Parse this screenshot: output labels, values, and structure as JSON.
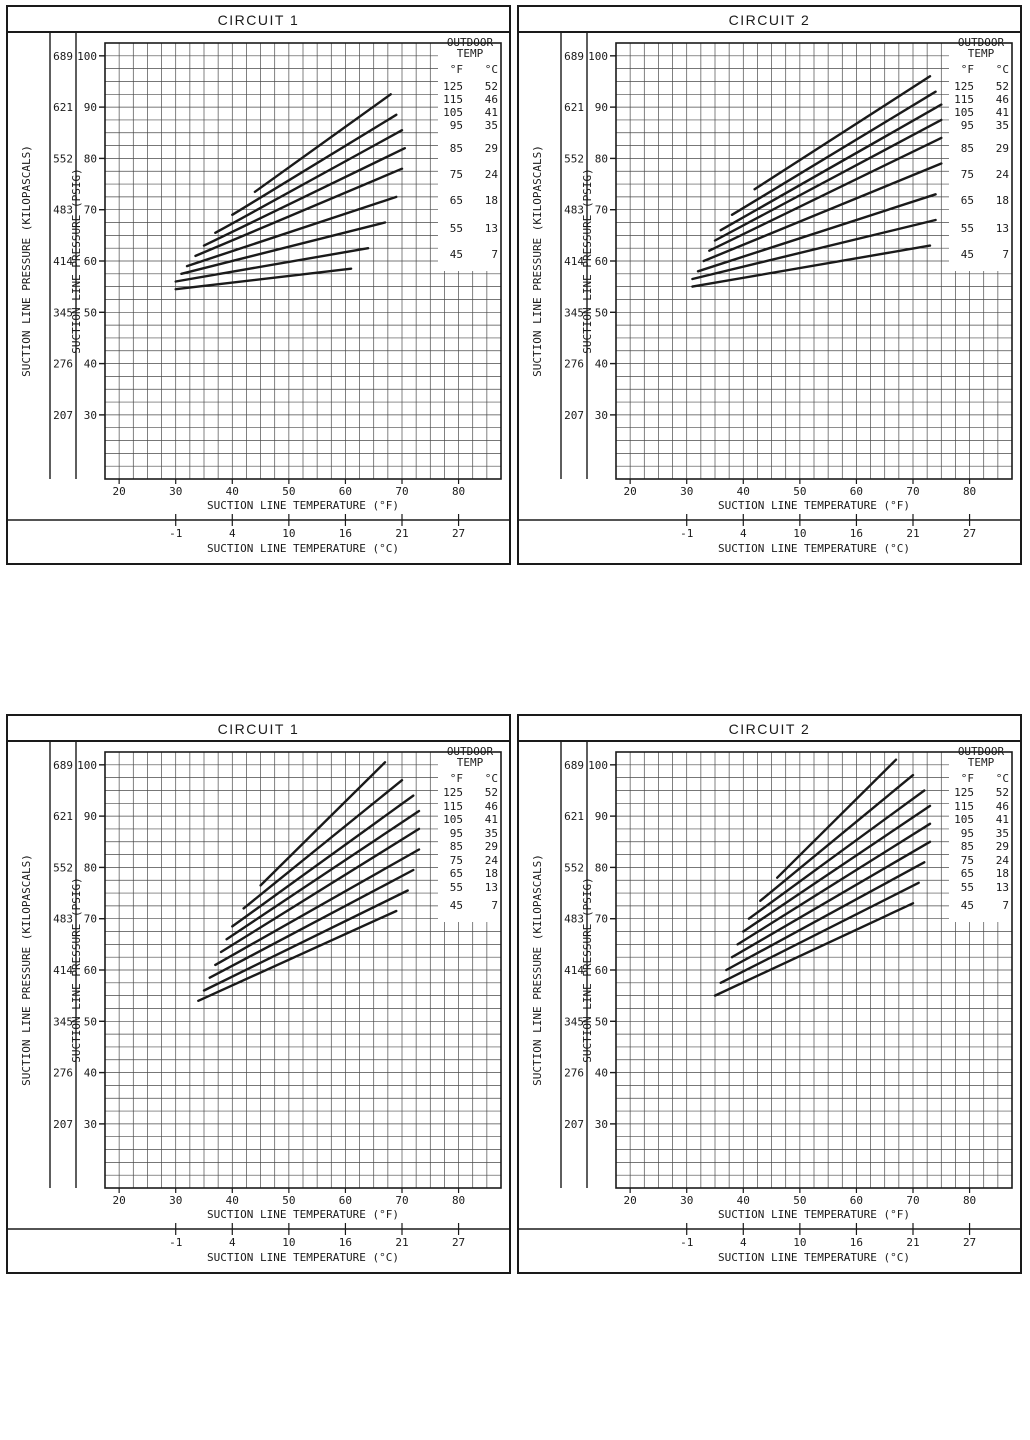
{
  "colors": {
    "ink": "#1a1a1a",
    "paper": "#ffffff",
    "grid": "#4a4a4a"
  },
  "chart_data": [
    {
      "type": "line",
      "title": "CIRCUIT 1",
      "xlabel_f": "SUCTION LINE TEMPERATURE (°F)",
      "xlabel_c": "SUCTION LINE TEMPERATURE (°C)",
      "ylabel_psig": "SUCTION LINE PRESSURE (PSIG)",
      "ylabel_kpa": "SUCTION LINE PRESSURE (KILOPASCALS)",
      "x_ticks_f": [
        20,
        30,
        40,
        50,
        60,
        70,
        80
      ],
      "x_ticks_c": [
        [
          -1,
          30
        ],
        [
          4,
          40
        ],
        [
          10,
          50
        ],
        [
          16,
          60
        ],
        [
          21,
          70
        ],
        [
          27,
          80
        ]
      ],
      "y_ticks_psig": [
        100,
        90,
        80,
        70,
        60,
        50,
        40,
        30
      ],
      "y_ticks_kpa": [
        [
          689,
          100
        ],
        [
          621,
          90
        ],
        [
          552,
          80
        ],
        [
          483,
          70
        ],
        [
          414,
          60
        ],
        [
          345,
          50
        ],
        [
          276,
          40
        ],
        [
          207,
          30
        ]
      ],
      "x_domain": [
        17.5,
        87.5
      ],
      "y_domain": [
        17.5,
        102.5
      ],
      "grid_step": 2.5,
      "grid": true,
      "legend": {
        "title": [
          "OUTDOOR",
          "TEMP"
        ],
        "columns": [
          "°F",
          "°C"
        ],
        "rows": [
          [
            125,
            52
          ],
          [
            115,
            46
          ],
          [
            105,
            41
          ],
          [
            95,
            35
          ],
          [
            85,
            29
          ],
          [
            75,
            24
          ],
          [
            65,
            18
          ],
          [
            55,
            13
          ],
          [
            45,
            7
          ]
        ],
        "layout": "spread",
        "position": "top-right"
      },
      "series": [
        {
          "outdoor_f": 45,
          "points": [
            [
              30,
              54.5
            ],
            [
              61,
              58.5
            ]
          ]
        },
        {
          "outdoor_f": 55,
          "points": [
            [
              30,
              56
            ],
            [
              64,
              62.5
            ]
          ]
        },
        {
          "outdoor_f": 65,
          "points": [
            [
              31,
              57.5
            ],
            [
              67,
              67.5
            ]
          ]
        },
        {
          "outdoor_f": 75,
          "points": [
            [
              32,
              59
            ],
            [
              69,
              72.5
            ]
          ]
        },
        {
          "outdoor_f": 85,
          "points": [
            [
              33.5,
              61
            ],
            [
              70,
              78
            ]
          ]
        },
        {
          "outdoor_f": 95,
          "points": [
            [
              35,
              63
            ],
            [
              70.5,
              82
            ]
          ]
        },
        {
          "outdoor_f": 105,
          "points": [
            [
              37,
              65.5
            ],
            [
              70,
              85.5
            ]
          ]
        },
        {
          "outdoor_f": 115,
          "points": [
            [
              40,
              69
            ],
            [
              69,
              88.5
            ]
          ]
        },
        {
          "outdoor_f": 125,
          "points": [
            [
              44,
              73.5
            ],
            [
              68,
              92.5
            ]
          ]
        }
      ]
    },
    {
      "type": "line",
      "title": "CIRCUIT 2",
      "xlabel_f": "SUCTION LINE TEMPERATURE (°F)",
      "xlabel_c": "SUCTION LINE TEMPERATURE (°C)",
      "ylabel_psig": "SUCTION LINE PRESSURE (PSIG)",
      "ylabel_kpa": "SUCTION LINE PRESSURE (KILOPASCALS)",
      "x_ticks_f": [
        20,
        30,
        40,
        50,
        60,
        70,
        80
      ],
      "x_ticks_c": [
        [
          -1,
          30
        ],
        [
          4,
          40
        ],
        [
          10,
          50
        ],
        [
          16,
          60
        ],
        [
          21,
          70
        ],
        [
          27,
          80
        ]
      ],
      "y_ticks_psig": [
        100,
        90,
        80,
        70,
        60,
        50,
        40,
        30
      ],
      "y_ticks_kpa": [
        [
          689,
          100
        ],
        [
          621,
          90
        ],
        [
          552,
          80
        ],
        [
          483,
          70
        ],
        [
          414,
          60
        ],
        [
          345,
          50
        ],
        [
          276,
          40
        ],
        [
          207,
          30
        ]
      ],
      "x_domain": [
        17.5,
        87.5
      ],
      "y_domain": [
        17.5,
        102.5
      ],
      "grid_step": 2.5,
      "grid": true,
      "legend": {
        "title": [
          "OUTDOOR",
          "TEMP"
        ],
        "columns": [
          "°F",
          "°C"
        ],
        "rows": [
          [
            125,
            52
          ],
          [
            115,
            46
          ],
          [
            105,
            41
          ],
          [
            95,
            35
          ],
          [
            85,
            29
          ],
          [
            75,
            24
          ],
          [
            65,
            18
          ],
          [
            55,
            13
          ],
          [
            45,
            7
          ]
        ],
        "layout": "spread",
        "position": "top-right"
      },
      "series": [
        {
          "outdoor_f": 45,
          "points": [
            [
              31,
              55
            ],
            [
              73,
              63
            ]
          ]
        },
        {
          "outdoor_f": 55,
          "points": [
            [
              31,
              56.5
            ],
            [
              74,
              68
            ]
          ]
        },
        {
          "outdoor_f": 65,
          "points": [
            [
              32,
              58
            ],
            [
              74,
              73
            ]
          ]
        },
        {
          "outdoor_f": 75,
          "points": [
            [
              33,
              60
            ],
            [
              75,
              79
            ]
          ]
        },
        {
          "outdoor_f": 85,
          "points": [
            [
              34,
              62
            ],
            [
              75,
              84
            ]
          ]
        },
        {
          "outdoor_f": 95,
          "points": [
            [
              35,
              64
            ],
            [
              75,
              87.5
            ]
          ]
        },
        {
          "outdoor_f": 105,
          "points": [
            [
              36,
              66
            ],
            [
              75,
              90.5
            ]
          ]
        },
        {
          "outdoor_f": 115,
          "points": [
            [
              38,
              69
            ],
            [
              74,
              93
            ]
          ]
        },
        {
          "outdoor_f": 125,
          "points": [
            [
              42,
              74
            ],
            [
              73,
              96
            ]
          ]
        }
      ]
    },
    {
      "type": "line",
      "title": "CIRCUIT 1",
      "xlabel_f": "SUCTION LINE TEMPERATURE (°F)",
      "xlabel_c": "SUCTION LINE TEMPERATURE (°C)",
      "ylabel_psig": "SUCTION LINE PRESSURE (PSIG)",
      "ylabel_kpa": "SUCTION LINE PRESSURE (KILOPASCALS)",
      "x_ticks_f": [
        20,
        30,
        40,
        50,
        60,
        70,
        80
      ],
      "x_ticks_c": [
        [
          -1,
          30
        ],
        [
          4,
          40
        ],
        [
          10,
          50
        ],
        [
          16,
          60
        ],
        [
          21,
          70
        ],
        [
          27,
          80
        ]
      ],
      "y_ticks_psig": [
        100,
        90,
        80,
        70,
        60,
        50,
        40,
        30
      ],
      "y_ticks_kpa": [
        [
          689,
          100
        ],
        [
          621,
          90
        ],
        [
          552,
          80
        ],
        [
          483,
          70
        ],
        [
          414,
          60
        ],
        [
          345,
          50
        ],
        [
          276,
          40
        ],
        [
          207,
          30
        ]
      ],
      "x_domain": [
        17.5,
        87.5
      ],
      "y_domain": [
        17.5,
        102.5
      ],
      "grid_step": 2.5,
      "grid": true,
      "legend": {
        "title": [
          "OUTDOOR",
          "TEMP"
        ],
        "columns": [
          "°F",
          "°C"
        ],
        "rows": [
          [
            125,
            52
          ],
          [
            115,
            46
          ],
          [
            105,
            41
          ],
          [
            95,
            35
          ],
          [
            85,
            29
          ],
          [
            75,
            24
          ],
          [
            65,
            18
          ],
          [
            55,
            13
          ],
          [
            45,
            7
          ]
        ],
        "layout": "compact",
        "position": "top-right"
      },
      "series": [
        {
          "outdoor_f": 45,
          "points": [
            [
              34,
              54
            ],
            [
              69,
              71.5
            ]
          ]
        },
        {
          "outdoor_f": 55,
          "points": [
            [
              35,
              56
            ],
            [
              71,
              75.5
            ]
          ]
        },
        {
          "outdoor_f": 65,
          "points": [
            [
              36,
              58.5
            ],
            [
              72,
              79.5
            ]
          ]
        },
        {
          "outdoor_f": 75,
          "points": [
            [
              37,
              61
            ],
            [
              73,
              83.5
            ]
          ]
        },
        {
          "outdoor_f": 85,
          "points": [
            [
              38,
              63.5
            ],
            [
              73,
              87.5
            ]
          ]
        },
        {
          "outdoor_f": 95,
          "points": [
            [
              39,
              66
            ],
            [
              73,
              91
            ]
          ]
        },
        {
          "outdoor_f": 105,
          "points": [
            [
              40,
              68.5
            ],
            [
              72,
              94
            ]
          ]
        },
        {
          "outdoor_f": 115,
          "points": [
            [
              42,
              72
            ],
            [
              70,
              97
            ]
          ]
        },
        {
          "outdoor_f": 125,
          "points": [
            [
              45,
              76.5
            ],
            [
              67,
              100.5
            ]
          ]
        }
      ]
    },
    {
      "type": "line",
      "title": "CIRCUIT 2",
      "xlabel_f": "SUCTION LINE TEMPERATURE (°F)",
      "xlabel_c": "SUCTION LINE TEMPERATURE (°C)",
      "ylabel_psig": "SUCTION LINE PRESSURE (PSIG)",
      "ylabel_kpa": "SUCTION LINE PRESSURE (KILOPASCALS)",
      "x_ticks_f": [
        20,
        30,
        40,
        50,
        60,
        70,
        80
      ],
      "x_ticks_c": [
        [
          -1,
          30
        ],
        [
          4,
          40
        ],
        [
          10,
          50
        ],
        [
          16,
          60
        ],
        [
          21,
          70
        ],
        [
          27,
          80
        ]
      ],
      "y_ticks_psig": [
        100,
        90,
        80,
        70,
        60,
        50,
        40,
        30
      ],
      "y_ticks_kpa": [
        [
          689,
          100
        ],
        [
          621,
          90
        ],
        [
          552,
          80
        ],
        [
          483,
          70
        ],
        [
          414,
          60
        ],
        [
          345,
          50
        ],
        [
          276,
          40
        ],
        [
          207,
          30
        ]
      ],
      "x_domain": [
        17.5,
        87.5
      ],
      "y_domain": [
        17.5,
        102.5
      ],
      "grid_step": 2.5,
      "grid": true,
      "legend": {
        "title": [
          "OUTDOOR",
          "TEMP"
        ],
        "columns": [
          "°F",
          "°C"
        ],
        "rows": [
          [
            125,
            52
          ],
          [
            115,
            46
          ],
          [
            105,
            41
          ],
          [
            95,
            35
          ],
          [
            85,
            29
          ],
          [
            75,
            24
          ],
          [
            65,
            18
          ],
          [
            55,
            13
          ],
          [
            45,
            7
          ]
        ],
        "layout": "compact",
        "position": "top-right"
      },
      "series": [
        {
          "outdoor_f": 45,
          "points": [
            [
              35,
              55
            ],
            [
              70,
              73
            ]
          ]
        },
        {
          "outdoor_f": 55,
          "points": [
            [
              36,
              57.5
            ],
            [
              71,
              77
            ]
          ]
        },
        {
          "outdoor_f": 65,
          "points": [
            [
              37,
              60
            ],
            [
              72,
              81
            ]
          ]
        },
        {
          "outdoor_f": 75,
          "points": [
            [
              38,
              62.5
            ],
            [
              73,
              85
            ]
          ]
        },
        {
          "outdoor_f": 85,
          "points": [
            [
              39,
              65
            ],
            [
              73,
              88.5
            ]
          ]
        },
        {
          "outdoor_f": 95,
          "points": [
            [
              40,
              67.5
            ],
            [
              73,
              92
            ]
          ]
        },
        {
          "outdoor_f": 105,
          "points": [
            [
              41,
              70
            ],
            [
              72,
              95
            ]
          ]
        },
        {
          "outdoor_f": 115,
          "points": [
            [
              43,
              73.5
            ],
            [
              70,
              98
            ]
          ]
        },
        {
          "outdoor_f": 125,
          "points": [
            [
              46,
              78
            ],
            [
              67,
              101
            ]
          ]
        }
      ]
    }
  ]
}
